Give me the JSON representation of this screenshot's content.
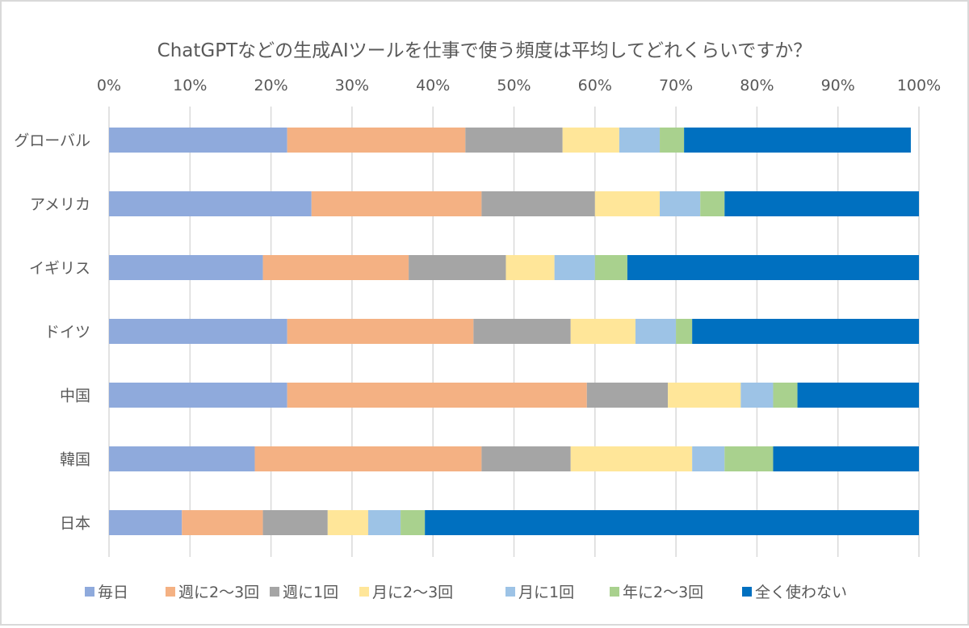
{
  "chart_data": {
    "type": "bar",
    "orientation": "horizontal",
    "stacked": true,
    "title": "ChatGPTなどの生成AIツールを仕事で使う頻度は平均してどれくらいですか？",
    "xlabel": "",
    "ylabel": "",
    "xlim": [
      0,
      100
    ],
    "x_ticks": [
      "0%",
      "10%",
      "20%",
      "30%",
      "40%",
      "50%",
      "60%",
      "70%",
      "80%",
      "90%",
      "100%"
    ],
    "grid": true,
    "legend_position": "bottom",
    "categories": [
      "グローバル",
      "アメリカ",
      "イギリス",
      "ドイツ",
      "中国",
      "韓国",
      "日本"
    ],
    "series": [
      {
        "name": "毎日",
        "color": "#8faadc",
        "values": [
          22,
          25,
          19,
          22,
          22,
          18,
          9
        ]
      },
      {
        "name": "週に2〜3回",
        "color": "#f4b183",
        "values": [
          22,
          21,
          18,
          23,
          37,
          28,
          10
        ]
      },
      {
        "name": "週に1回",
        "color": "#a5a5a5",
        "values": [
          12,
          14,
          12,
          12,
          10,
          11,
          8
        ]
      },
      {
        "name": "月に2〜3回",
        "color": "#ffe699",
        "values": [
          7,
          8,
          6,
          8,
          9,
          15,
          5
        ]
      },
      {
        "name": "月に1回",
        "color": "#9dc3e6",
        "values": [
          5,
          5,
          5,
          5,
          4,
          4,
          4
        ]
      },
      {
        "name": "年に2〜3回",
        "color": "#a9d18e",
        "values": [
          3,
          3,
          4,
          2,
          3,
          6,
          3
        ]
      },
      {
        "name": "全く使わない",
        "color": "#0070c0",
        "values": [
          28,
          24,
          36,
          28,
          15,
          18,
          61
        ]
      }
    ]
  }
}
